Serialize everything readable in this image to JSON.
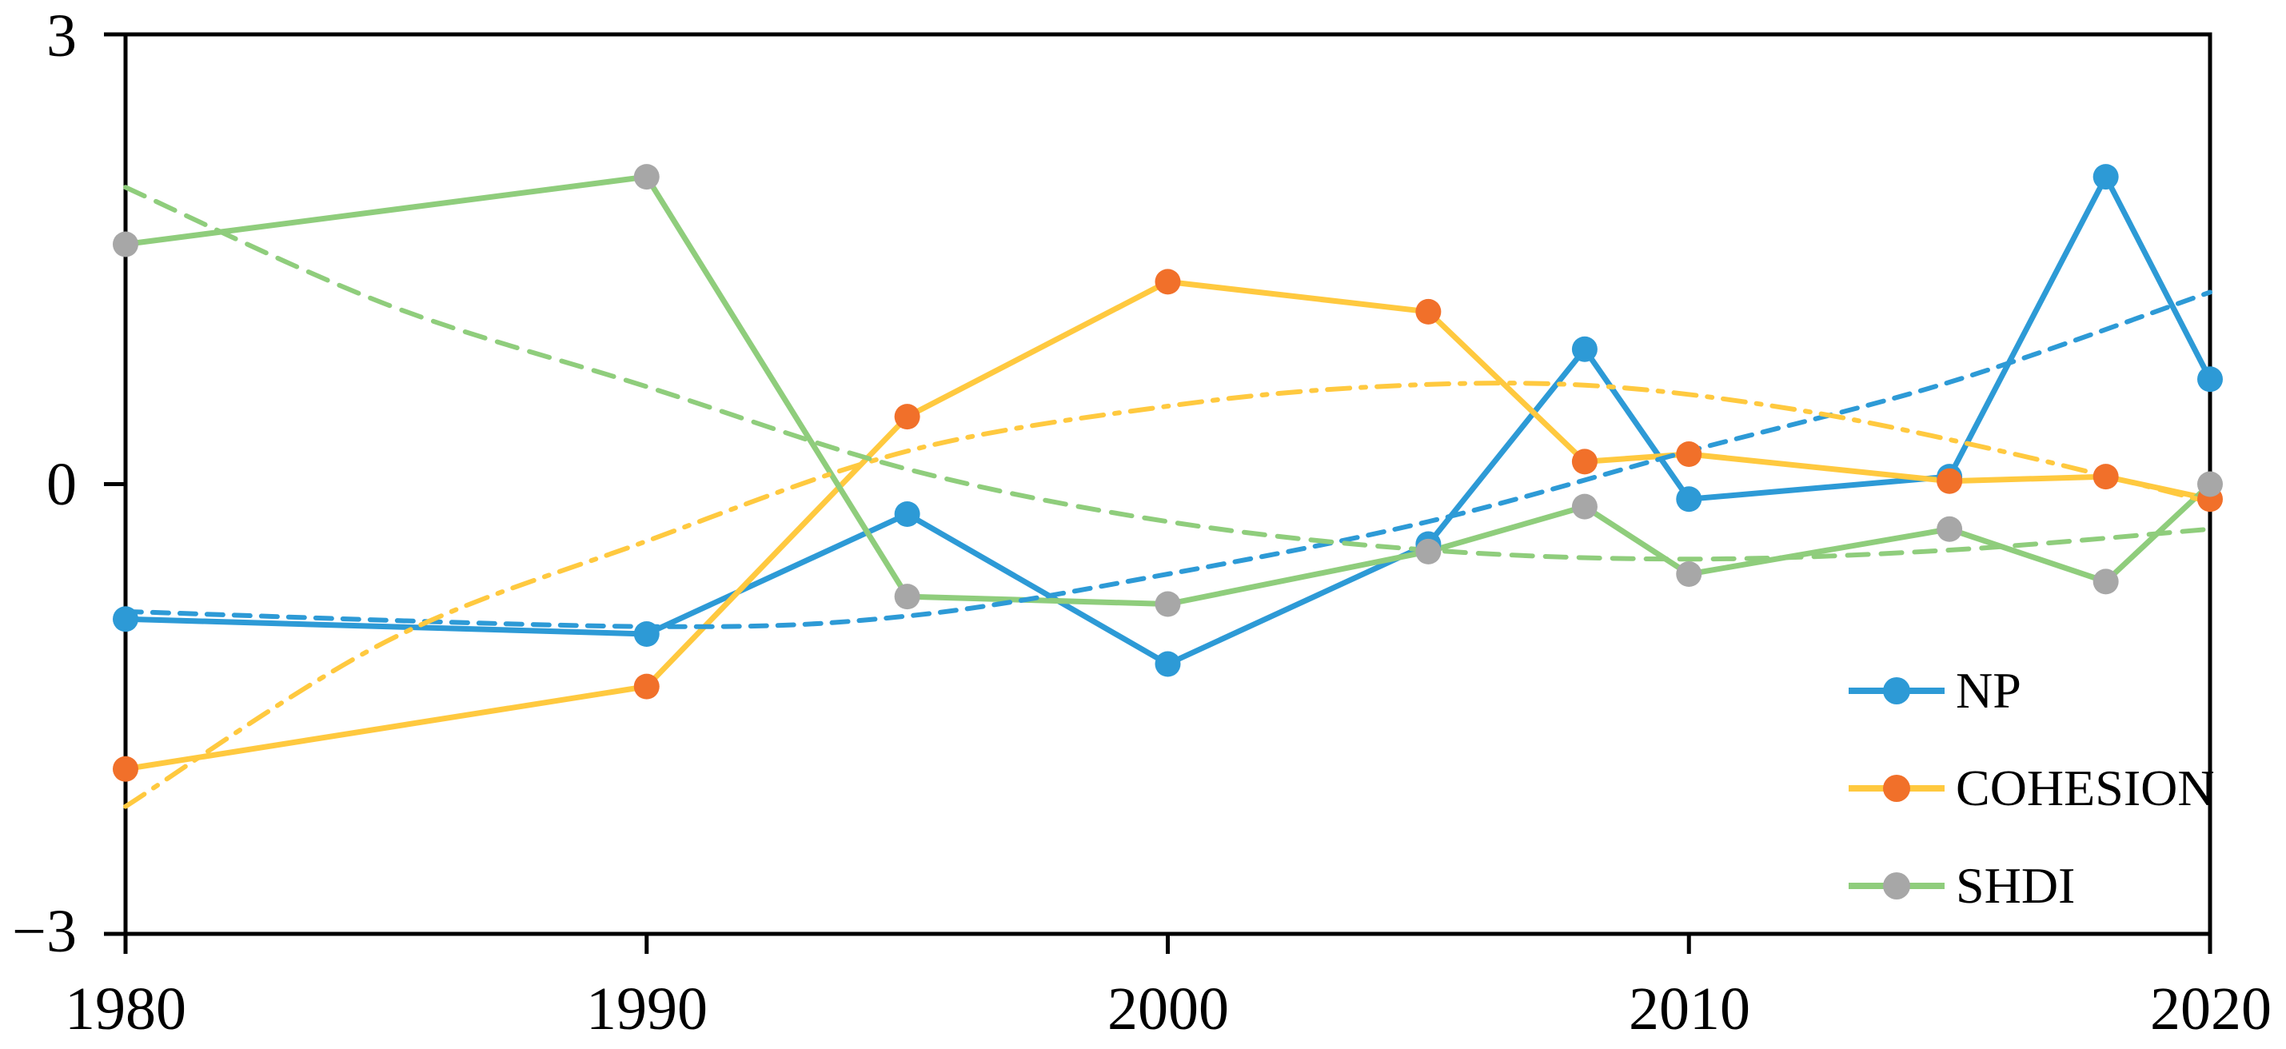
{
  "chart_data": {
    "type": "line",
    "title": "",
    "xlabel": "",
    "ylabel": "",
    "xlim": [
      1980,
      2020
    ],
    "ylim": [
      -3,
      3
    ],
    "grid": false,
    "legend_position": "inside-bottom-right",
    "axis_color": "#000000",
    "background_color": "#ffffff",
    "x": [
      1980,
      1990,
      1995,
      2000,
      2005,
      2008,
      2010,
      2015,
      2018,
      2020
    ],
    "series": [
      {
        "name": "NP",
        "line_color": "#2D9AD6",
        "marker_color": "#2D9AD6",
        "values": [
          -0.9,
          -1.0,
          -0.2,
          -1.2,
          -0.4,
          0.9,
          -0.1,
          0.05,
          2.05,
          0.7
        ]
      },
      {
        "name": "COHESION",
        "line_color": "#FFC93F",
        "marker_color": "#F1702A",
        "values": [
          -1.9,
          -1.35,
          0.45,
          1.35,
          1.15,
          0.15,
          0.2,
          0.02,
          0.05,
          -0.1
        ]
      },
      {
        "name": "SHDI",
        "line_color": "#8FCD7C",
        "marker_color": "#A7A7A7",
        "values": [
          1.6,
          2.05,
          -0.75,
          -0.8,
          -0.45,
          -0.15,
          -0.6,
          -0.3,
          -0.65,
          0.0
        ]
      }
    ],
    "trendlines": [
      {
        "series": "NP",
        "style": "dashed",
        "color": "#2D9AD6",
        "dash": "20 14",
        "points": [
          [
            1980,
            -0.85
          ],
          [
            1990,
            -0.95
          ],
          [
            1995,
            -0.88
          ],
          [
            2000,
            -0.6
          ],
          [
            2005,
            -0.25
          ],
          [
            2010,
            0.22
          ],
          [
            2015,
            0.68
          ],
          [
            2020,
            1.28
          ]
        ]
      },
      {
        "series": "COHESION",
        "style": "dash-dot",
        "color": "#FFC93F",
        "dash": "28 14 6 14",
        "points": [
          [
            1980,
            -2.15
          ],
          [
            1985,
            -1.05
          ],
          [
            1990,
            -0.38
          ],
          [
            1995,
            0.22
          ],
          [
            2000,
            0.52
          ],
          [
            2004,
            0.65
          ],
          [
            2008,
            0.66
          ],
          [
            2012,
            0.5
          ],
          [
            2016,
            0.22
          ],
          [
            2020,
            -0.12
          ]
        ]
      },
      {
        "series": "SHDI",
        "style": "dashed",
        "color": "#8FCD7C",
        "dash": "26 16",
        "points": [
          [
            1980,
            1.98
          ],
          [
            1985,
            1.2
          ],
          [
            1990,
            0.65
          ],
          [
            1995,
            0.1
          ],
          [
            2000,
            -0.25
          ],
          [
            2005,
            -0.44
          ],
          [
            2010,
            -0.5
          ],
          [
            2015,
            -0.44
          ],
          [
            2020,
            -0.3
          ]
        ]
      }
    ],
    "yticks": [
      3,
      0,
      -3
    ],
    "ytick_labels": [
      "3",
      "0",
      "−3"
    ],
    "xticks": [
      1980,
      1990,
      2000,
      2010,
      2020
    ],
    "xtick_labels": [
      "1980",
      "1990",
      "2000",
      "2010",
      "2020"
    ]
  }
}
